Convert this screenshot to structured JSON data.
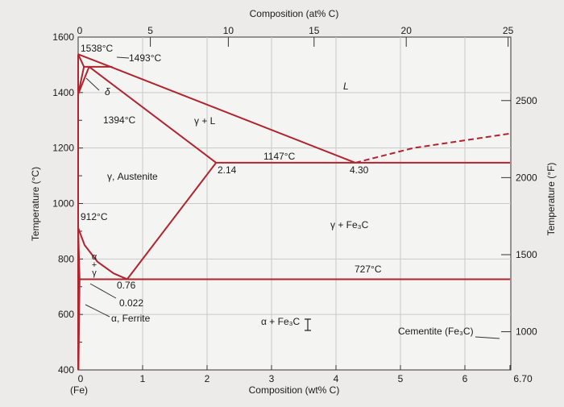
{
  "colors": {
    "phase_line": "#b0242e",
    "grid": "#c9c9c9",
    "axis": "#333333",
    "bg": "#ecebe9",
    "plot_bg": "#f4f4f3"
  },
  "axes": {
    "top_title": "Composition (at% C)",
    "bottom_title": "Composition (wt% C)",
    "left_title": "Temperature (°C)",
    "right_title": "Temperature (°F)",
    "fe_label": "(Fe)"
  },
  "ticks": {
    "wt": [
      {
        "v": 0,
        "label": "0"
      },
      {
        "v": 1,
        "label": "1"
      },
      {
        "v": 2,
        "label": "2"
      },
      {
        "v": 3,
        "label": "3"
      },
      {
        "v": 4,
        "label": "4"
      },
      {
        "v": 5,
        "label": "5"
      },
      {
        "v": 6,
        "label": "6"
      },
      {
        "v": 6.7,
        "label": "6.70"
      }
    ],
    "at": [
      {
        "wt": 0,
        "label": "0"
      },
      {
        "wt": 1.12,
        "label": "5"
      },
      {
        "wt": 2.33,
        "label": "10"
      },
      {
        "wt": 3.66,
        "label": "15"
      },
      {
        "wt": 5.09,
        "label": "20"
      },
      {
        "wt": 6.67,
        "label": "25"
      }
    ],
    "celsius": [
      {
        "v": 1600,
        "label": "1600"
      },
      {
        "v": 1400,
        "label": "1400"
      },
      {
        "v": 1200,
        "label": "1200"
      },
      {
        "v": 1000,
        "label": "1000"
      },
      {
        "v": 800,
        "label": "800"
      },
      {
        "v": 600,
        "label": "600"
      },
      {
        "v": 400,
        "label": "400"
      }
    ],
    "fahrenheit": [
      {
        "v": 2500,
        "label": "2500"
      },
      {
        "v": 2000,
        "label": "2000"
      },
      {
        "v": 1500,
        "label": "1500"
      },
      {
        "v": 1000,
        "label": "1000"
      }
    ]
  },
  "labels": {
    "t1538": "1538°C",
    "t1493": "1493°C",
    "t1394": "1394°C",
    "t1147": "1147°C",
    "t912": "912°C",
    "t727": "727°C",
    "delta": "δ",
    "liquid": "L",
    "gamma_liquid": "γ + L",
    "austenite": "γ, Austenite",
    "c214": "2.14",
    "c430": "4.30",
    "gamma_cementite": "γ + Fe₃C",
    "alpha_gamma": [
      "α",
      "+",
      "γ"
    ],
    "c076": "0.76",
    "c0022": "0.022",
    "ferrite": "α, Ferrite",
    "alpha_cementite": "α + Fe₃C",
    "cementite": "Cementite (Fe₃C)"
  }
}
